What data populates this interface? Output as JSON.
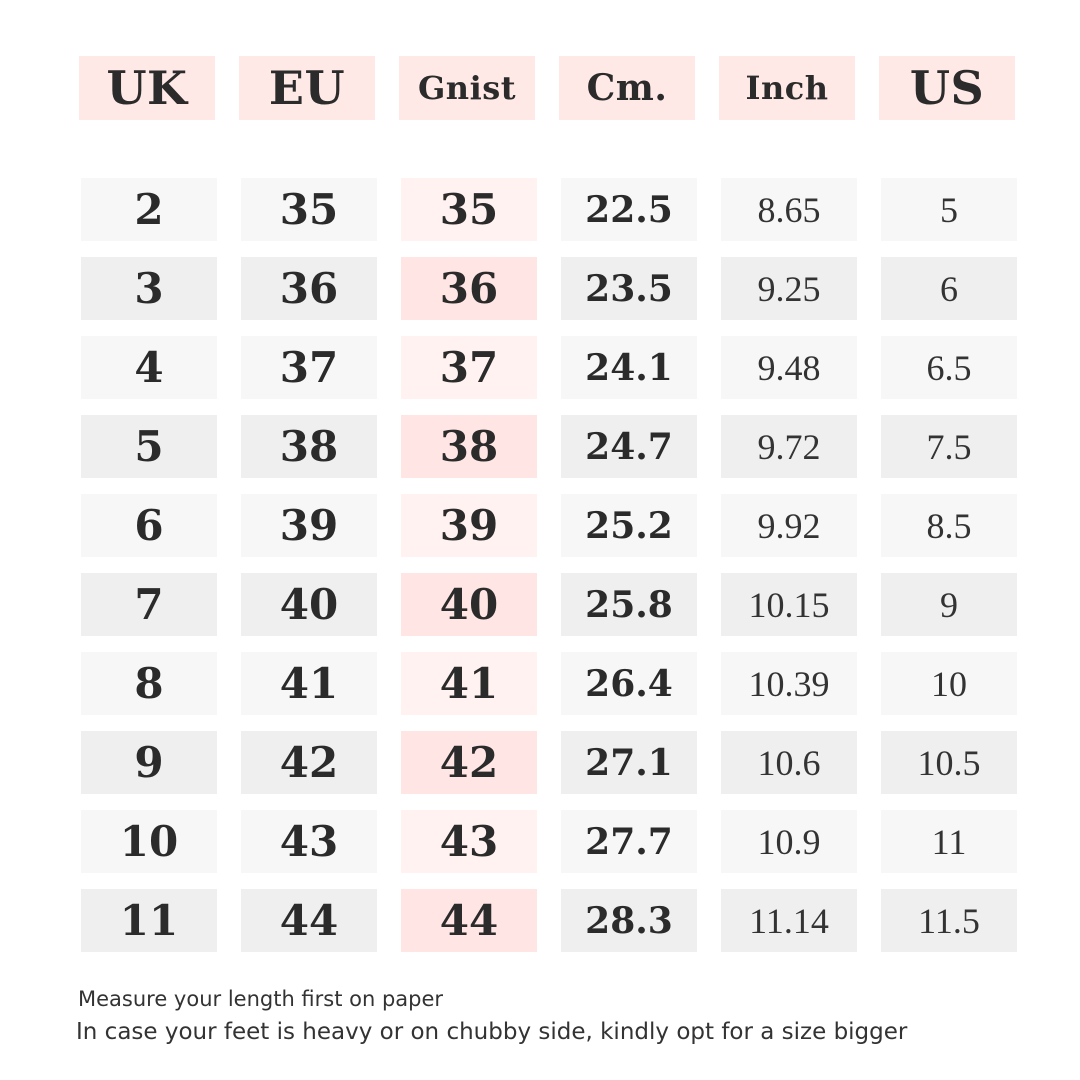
{
  "headers": {
    "uk": "UK",
    "eu": "EU",
    "gnist": "Gnist",
    "cm": "Cm.",
    "inch": "Inch",
    "us": "US"
  },
  "rows": [
    {
      "uk": "2",
      "eu": "35",
      "gnist": "35",
      "cm": "22.5",
      "inch": "8.65",
      "us": "5"
    },
    {
      "uk": "3",
      "eu": "36",
      "gnist": "36",
      "cm": "23.5",
      "inch": "9.25",
      "us": "6"
    },
    {
      "uk": "4",
      "eu": "37",
      "gnist": "37",
      "cm": "24.1",
      "inch": "9.48",
      "us": "6.5"
    },
    {
      "uk": "5",
      "eu": "38",
      "gnist": "38",
      "cm": "24.7",
      "inch": "9.72",
      "us": "7.5"
    },
    {
      "uk": "6",
      "eu": "39",
      "gnist": "39",
      "cm": "25.2",
      "inch": "9.92",
      "us": "8.5"
    },
    {
      "uk": "7",
      "eu": "40",
      "gnist": "40",
      "cm": "25.8",
      "inch": "10.15",
      "us": "9"
    },
    {
      "uk": "8",
      "eu": "41",
      "gnist": "41",
      "cm": "26.4",
      "inch": "10.39",
      "us": "10"
    },
    {
      "uk": "9",
      "eu": "42",
      "gnist": "42",
      "cm": "27.1",
      "inch": "10.6",
      "us": "10.5"
    },
    {
      "uk": "10",
      "eu": "43",
      "gnist": "43",
      "cm": "27.7",
      "inch": "10.9",
      "us": "11"
    },
    {
      "uk": "11",
      "eu": "44",
      "gnist": "44",
      "cm": "28.3",
      "inch": "11.14",
      "us": "11.5"
    }
  ],
  "notes": {
    "line1": "Measure your length first on paper",
    "line2": "In case your feet is heavy or on chubby side, kindly opt for a size bigger"
  },
  "colors": {
    "header_bg": "#ffe9e7",
    "row_light": "#f7f7f7",
    "row_dark": "#efeff0",
    "gnist_light": "#fff2f1",
    "gnist_dark": "#ffe6e4",
    "text": "#2b2b2b"
  }
}
